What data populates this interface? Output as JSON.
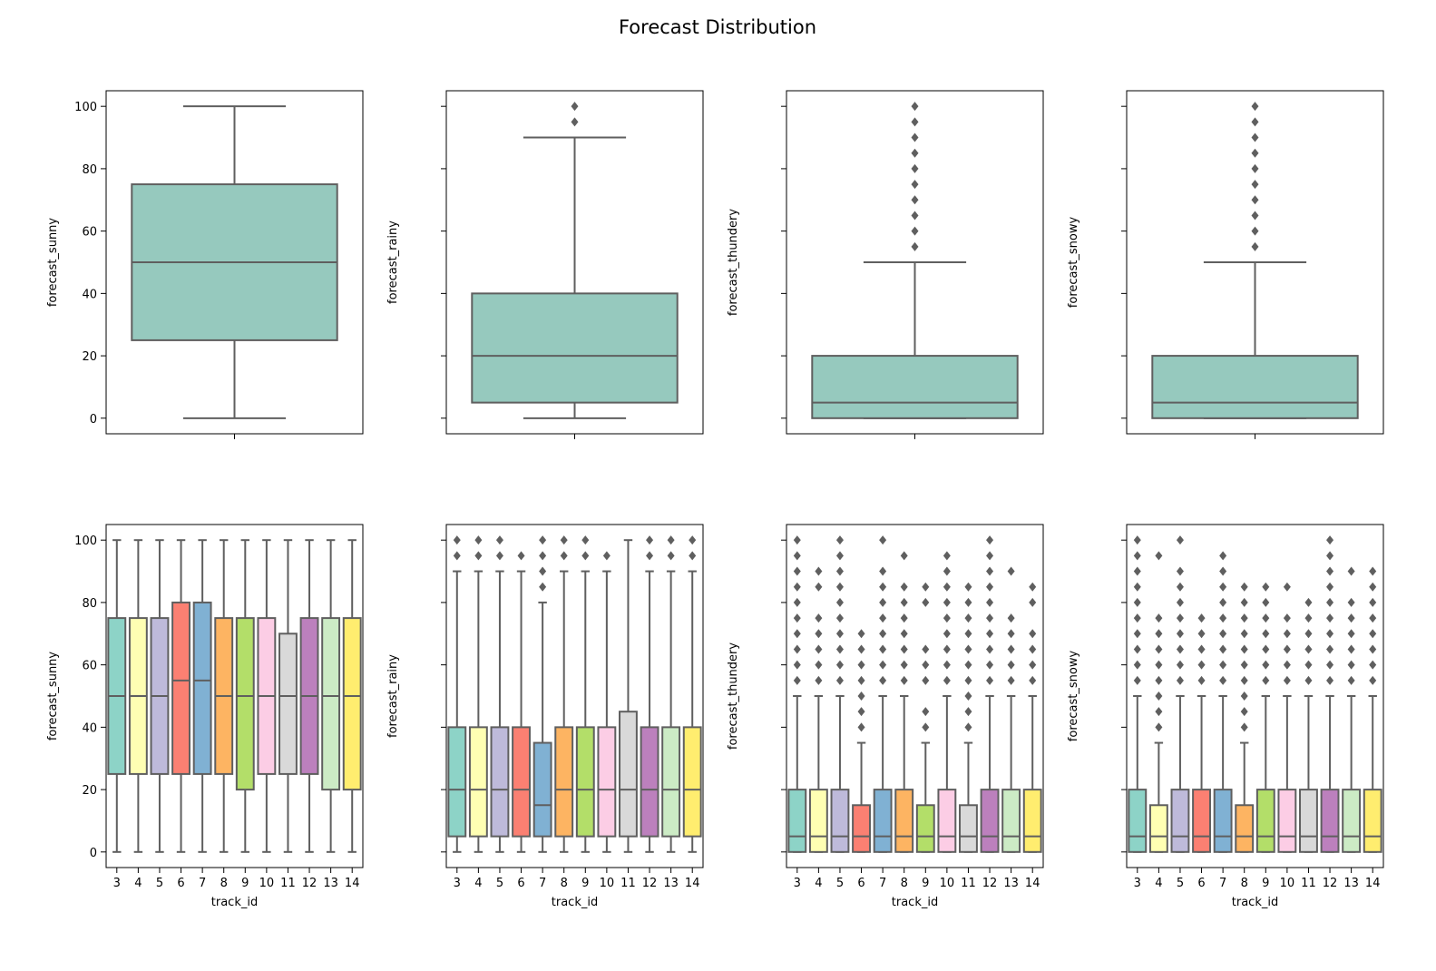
{
  "figure": {
    "title": "Forecast Distribution",
    "box_edge_color": "#5f5f5f",
    "single_box_color": "#96c9be",
    "track_palette": [
      "#8dd3c7",
      "#ffffb3",
      "#bebada",
      "#fb8072",
      "#80b1d3",
      "#fdb462",
      "#b3de69",
      "#fccde5",
      "#d9d9d9",
      "#bc80bd",
      "#ccebc5",
      "#ffed6f"
    ]
  },
  "chart_data": [
    {
      "type": "box",
      "ylabel": "forecast_sunny",
      "xlabel": "",
      "ylim": [
        -5,
        105
      ],
      "yticks": [
        "0",
        "20",
        "40",
        "60",
        "80",
        "100"
      ],
      "boxes": [
        {
          "q1": 25,
          "median": 50,
          "q3": 75,
          "whisker_low": 0,
          "whisker_high": 100,
          "outliers": []
        }
      ]
    },
    {
      "type": "box",
      "ylabel": "forecast_rainy",
      "xlabel": "",
      "ylim": [
        -5,
        105
      ],
      "yticks": [],
      "boxes": [
        {
          "q1": 5,
          "median": 20,
          "q3": 40,
          "whisker_low": 0,
          "whisker_high": 90,
          "outliers": [
            95,
            100
          ]
        }
      ]
    },
    {
      "type": "box",
      "ylabel": "forecast_thundery",
      "xlabel": "",
      "ylim": [
        -5,
        105
      ],
      "yticks": [],
      "boxes": [
        {
          "q1": 0,
          "median": 5,
          "q3": 20,
          "whisker_low": 0,
          "whisker_high": 50,
          "outliers": [
            55,
            60,
            65,
            70,
            75,
            80,
            85,
            90,
            95,
            100
          ]
        }
      ]
    },
    {
      "type": "box",
      "ylabel": "forecast_snowy",
      "xlabel": "",
      "ylim": [
        -5,
        105
      ],
      "yticks": [],
      "boxes": [
        {
          "q1": 0,
          "median": 5,
          "q3": 20,
          "whisker_low": 0,
          "whisker_high": 50,
          "outliers": [
            55,
            60,
            65,
            70,
            75,
            80,
            85,
            90,
            95,
            100
          ]
        }
      ]
    },
    {
      "type": "box",
      "ylabel": "forecast_sunny",
      "xlabel": "track_id",
      "ylim": [
        -5,
        105
      ],
      "yticks": [
        "0",
        "20",
        "40",
        "60",
        "80",
        "100"
      ],
      "categories": [
        "3",
        "4",
        "5",
        "6",
        "7",
        "8",
        "9",
        "10",
        "11",
        "12",
        "13",
        "14"
      ],
      "boxes": [
        {
          "q1": 25,
          "median": 50,
          "q3": 75,
          "whisker_low": 0,
          "whisker_high": 100,
          "outliers": []
        },
        {
          "q1": 25,
          "median": 50,
          "q3": 75,
          "whisker_low": 0,
          "whisker_high": 100,
          "outliers": []
        },
        {
          "q1": 25,
          "median": 50,
          "q3": 75,
          "whisker_low": 0,
          "whisker_high": 100,
          "outliers": []
        },
        {
          "q1": 25,
          "median": 55,
          "q3": 80,
          "whisker_low": 0,
          "whisker_high": 100,
          "outliers": []
        },
        {
          "q1": 25,
          "median": 55,
          "q3": 80,
          "whisker_low": 0,
          "whisker_high": 100,
          "outliers": []
        },
        {
          "q1": 25,
          "median": 50,
          "q3": 75,
          "whisker_low": 0,
          "whisker_high": 100,
          "outliers": []
        },
        {
          "q1": 20,
          "median": 50,
          "q3": 75,
          "whisker_low": 0,
          "whisker_high": 100,
          "outliers": []
        },
        {
          "q1": 25,
          "median": 50,
          "q3": 75,
          "whisker_low": 0,
          "whisker_high": 100,
          "outliers": []
        },
        {
          "q1": 25,
          "median": 50,
          "q3": 70,
          "whisker_low": 0,
          "whisker_high": 100,
          "outliers": []
        },
        {
          "q1": 25,
          "median": 50,
          "q3": 75,
          "whisker_low": 0,
          "whisker_high": 100,
          "outliers": []
        },
        {
          "q1": 20,
          "median": 50,
          "q3": 75,
          "whisker_low": 0,
          "whisker_high": 100,
          "outliers": []
        },
        {
          "q1": 20,
          "median": 50,
          "q3": 75,
          "whisker_low": 0,
          "whisker_high": 100,
          "outliers": []
        }
      ]
    },
    {
      "type": "box",
      "ylabel": "forecast_rainy",
      "xlabel": "track_id",
      "ylim": [
        -5,
        105
      ],
      "yticks": [],
      "categories": [
        "3",
        "4",
        "5",
        "6",
        "7",
        "8",
        "9",
        "10",
        "11",
        "12",
        "13",
        "14"
      ],
      "boxes": [
        {
          "q1": 5,
          "median": 20,
          "q3": 40,
          "whisker_low": 0,
          "whisker_high": 90,
          "outliers": [
            95,
            100
          ]
        },
        {
          "q1": 5,
          "median": 20,
          "q3": 40,
          "whisker_low": 0,
          "whisker_high": 90,
          "outliers": [
            95,
            100
          ]
        },
        {
          "q1": 5,
          "median": 20,
          "q3": 40,
          "whisker_low": 0,
          "whisker_high": 90,
          "outliers": [
            95,
            100
          ]
        },
        {
          "q1": 5,
          "median": 20,
          "q3": 40,
          "whisker_low": 0,
          "whisker_high": 90,
          "outliers": [
            95
          ]
        },
        {
          "q1": 5,
          "median": 15,
          "q3": 35,
          "whisker_low": 0,
          "whisker_high": 80,
          "outliers": [
            85,
            90,
            95,
            100
          ]
        },
        {
          "q1": 5,
          "median": 20,
          "q3": 40,
          "whisker_low": 0,
          "whisker_high": 90,
          "outliers": [
            95,
            100
          ]
        },
        {
          "q1": 5,
          "median": 20,
          "q3": 40,
          "whisker_low": 0,
          "whisker_high": 90,
          "outliers": [
            95,
            100
          ]
        },
        {
          "q1": 5,
          "median": 20,
          "q3": 40,
          "whisker_low": 0,
          "whisker_high": 90,
          "outliers": [
            95
          ]
        },
        {
          "q1": 5,
          "median": 20,
          "q3": 45,
          "whisker_low": 0,
          "whisker_high": 100,
          "outliers": []
        },
        {
          "q1": 5,
          "median": 20,
          "q3": 40,
          "whisker_low": 0,
          "whisker_high": 90,
          "outliers": [
            95,
            100
          ]
        },
        {
          "q1": 5,
          "median": 20,
          "q3": 40,
          "whisker_low": 0,
          "whisker_high": 90,
          "outliers": [
            95,
            100
          ]
        },
        {
          "q1": 5,
          "median": 20,
          "q3": 40,
          "whisker_low": 0,
          "whisker_high": 90,
          "outliers": [
            95,
            100
          ]
        }
      ]
    },
    {
      "type": "box",
      "ylabel": "forecast_thundery",
      "xlabel": "track_id",
      "ylim": [
        -5,
        105
      ],
      "yticks": [],
      "categories": [
        "3",
        "4",
        "5",
        "6",
        "7",
        "8",
        "9",
        "10",
        "11",
        "12",
        "13",
        "14"
      ],
      "boxes": [
        {
          "q1": 0,
          "median": 5,
          "q3": 20,
          "whisker_low": 0,
          "whisker_high": 50,
          "outliers": [
            55,
            60,
            65,
            70,
            75,
            80,
            85,
            90,
            95,
            100
          ]
        },
        {
          "q1": 0,
          "median": 5,
          "q3": 20,
          "whisker_low": 0,
          "whisker_high": 50,
          "outliers": [
            55,
            60,
            65,
            70,
            75,
            85,
            90
          ]
        },
        {
          "q1": 0,
          "median": 5,
          "q3": 20,
          "whisker_low": 0,
          "whisker_high": 50,
          "outliers": [
            55,
            60,
            65,
            70,
            75,
            80,
            85,
            90,
            95,
            100
          ]
        },
        {
          "q1": 0,
          "median": 5,
          "q3": 15,
          "whisker_low": 0,
          "whisker_high": 35,
          "outliers": [
            40,
            45,
            50,
            55,
            60,
            65,
            70
          ]
        },
        {
          "q1": 0,
          "median": 5,
          "q3": 20,
          "whisker_low": 0,
          "whisker_high": 50,
          "outliers": [
            55,
            60,
            65,
            70,
            75,
            80,
            85,
            90,
            100
          ]
        },
        {
          "q1": 0,
          "median": 5,
          "q3": 20,
          "whisker_low": 0,
          "whisker_high": 50,
          "outliers": [
            55,
            60,
            65,
            70,
            75,
            80,
            85,
            95
          ]
        },
        {
          "q1": 0,
          "median": 5,
          "q3": 15,
          "whisker_low": 0,
          "whisker_high": 35,
          "outliers": [
            40,
            45,
            55,
            60,
            65,
            80,
            85
          ]
        },
        {
          "q1": 0,
          "median": 5,
          "q3": 20,
          "whisker_low": 0,
          "whisker_high": 50,
          "outliers": [
            55,
            60,
            65,
            70,
            75,
            80,
            85,
            90,
            95
          ]
        },
        {
          "q1": 0,
          "median": 5,
          "q3": 15,
          "whisker_low": 0,
          "whisker_high": 35,
          "outliers": [
            40,
            45,
            50,
            55,
            60,
            65,
            70,
            75,
            80,
            85
          ]
        },
        {
          "q1": 0,
          "median": 5,
          "q3": 20,
          "whisker_low": 0,
          "whisker_high": 50,
          "outliers": [
            55,
            60,
            65,
            70,
            75,
            80,
            85,
            90,
            95,
            100
          ]
        },
        {
          "q1": 0,
          "median": 5,
          "q3": 20,
          "whisker_low": 0,
          "whisker_high": 50,
          "outliers": [
            55,
            60,
            65,
            70,
            75,
            90
          ]
        },
        {
          "q1": 0,
          "median": 5,
          "q3": 20,
          "whisker_low": 0,
          "whisker_high": 50,
          "outliers": [
            55,
            60,
            65,
            70,
            80,
            85
          ]
        }
      ]
    },
    {
      "type": "box",
      "ylabel": "forecast_snowy",
      "xlabel": "track_id",
      "ylim": [
        -5,
        105
      ],
      "yticks": [],
      "categories": [
        "3",
        "4",
        "5",
        "6",
        "7",
        "8",
        "9",
        "10",
        "11",
        "12",
        "13",
        "14"
      ],
      "boxes": [
        {
          "q1": 0,
          "median": 5,
          "q3": 20,
          "whisker_low": 0,
          "whisker_high": 50,
          "outliers": [
            55,
            60,
            65,
            70,
            75,
            80,
            85,
            90,
            95,
            100
          ]
        },
        {
          "q1": 0,
          "median": 5,
          "q3": 15,
          "whisker_low": 0,
          "whisker_high": 35,
          "outliers": [
            40,
            45,
            50,
            55,
            60,
            65,
            70,
            75,
            95
          ]
        },
        {
          "q1": 0,
          "median": 5,
          "q3": 20,
          "whisker_low": 0,
          "whisker_high": 50,
          "outliers": [
            55,
            60,
            65,
            70,
            75,
            80,
            85,
            90,
            100
          ]
        },
        {
          "q1": 0,
          "median": 5,
          "q3": 20,
          "whisker_low": 0,
          "whisker_high": 50,
          "outliers": [
            55,
            60,
            65,
            70,
            75
          ]
        },
        {
          "q1": 0,
          "median": 5,
          "q3": 20,
          "whisker_low": 0,
          "whisker_high": 50,
          "outliers": [
            55,
            60,
            65,
            70,
            75,
            80,
            85,
            90,
            95
          ]
        },
        {
          "q1": 0,
          "median": 5,
          "q3": 15,
          "whisker_low": 0,
          "whisker_high": 35,
          "outliers": [
            40,
            45,
            50,
            55,
            60,
            65,
            70,
            75,
            80,
            85
          ]
        },
        {
          "q1": 0,
          "median": 5,
          "q3": 20,
          "whisker_low": 0,
          "whisker_high": 50,
          "outliers": [
            55,
            60,
            65,
            70,
            75,
            80,
            85
          ]
        },
        {
          "q1": 0,
          "median": 5,
          "q3": 20,
          "whisker_low": 0,
          "whisker_high": 50,
          "outliers": [
            55,
            60,
            65,
            70,
            75,
            85
          ]
        },
        {
          "q1": 0,
          "median": 5,
          "q3": 20,
          "whisker_low": 0,
          "whisker_high": 50,
          "outliers": [
            55,
            60,
            65,
            70,
            75,
            80
          ]
        },
        {
          "q1": 0,
          "median": 5,
          "q3": 20,
          "whisker_low": 0,
          "whisker_high": 50,
          "outliers": [
            55,
            60,
            65,
            70,
            75,
            80,
            85,
            90,
            95,
            100
          ]
        },
        {
          "q1": 0,
          "median": 5,
          "q3": 20,
          "whisker_low": 0,
          "whisker_high": 50,
          "outliers": [
            55,
            60,
            65,
            70,
            75,
            80,
            90
          ]
        },
        {
          "q1": 0,
          "median": 5,
          "q3": 20,
          "whisker_low": 0,
          "whisker_high": 50,
          "outliers": [
            55,
            60,
            65,
            70,
            75,
            80,
            85,
            90
          ]
        }
      ]
    }
  ]
}
